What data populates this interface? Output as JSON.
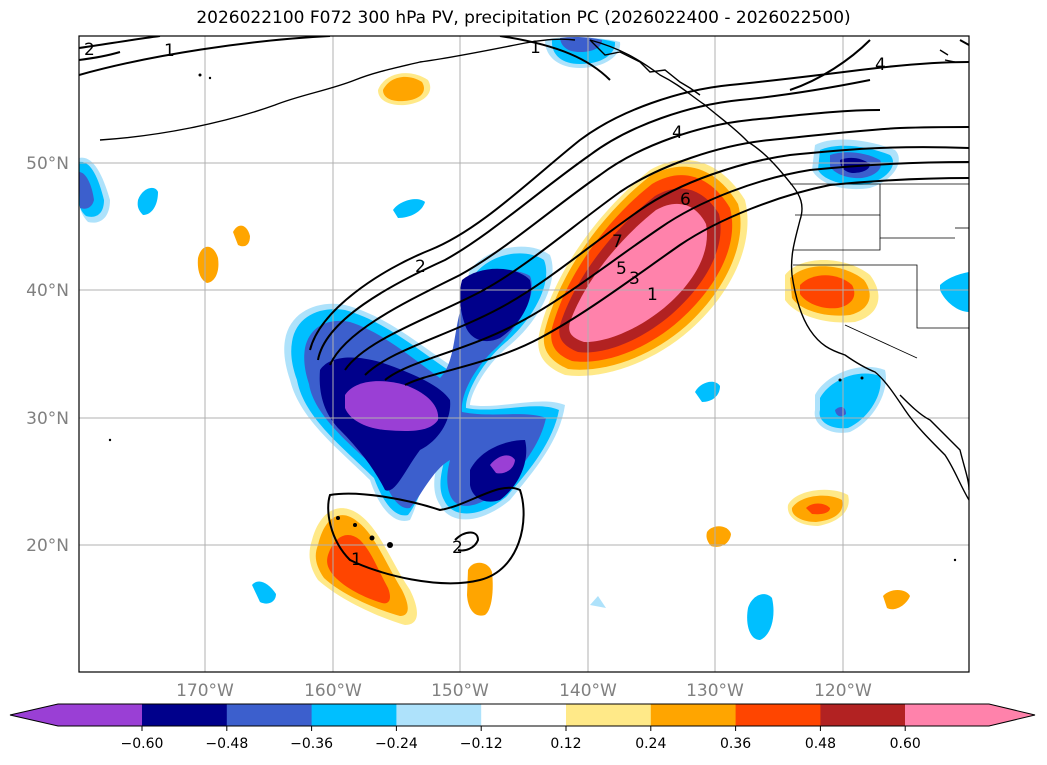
{
  "title": "2026022100 F072 300 hPa PV, precipitation PC (2026022400 - 2026022500)",
  "map": {
    "lat_labels": [
      "50°N",
      "40°N",
      "30°N",
      "20°N"
    ],
    "lon_labels": [
      "170°W",
      "160°W",
      "150°W",
      "140°W",
      "130°W",
      "120°W"
    ],
    "pv_contour_labels": [
      "2",
      "1",
      "1",
      "4",
      "2",
      "4",
      "6",
      "7",
      "5",
      "3",
      "1",
      "2",
      "1"
    ]
  },
  "colorbar": {
    "levels": [
      "−0.60",
      "−0.48",
      "−0.36",
      "−0.24",
      "−0.12",
      "0.12",
      "0.24",
      "0.36",
      "0.48",
      "0.60"
    ],
    "colors": [
      "#9a3fd5",
      "#00008b",
      "#3c5fcd",
      "#00bfff",
      "#aee2fb",
      "#ffffff",
      "#ffe988",
      "#ffa500",
      "#ff4500",
      "#b22222",
      "#ff82ab"
    ]
  }
}
